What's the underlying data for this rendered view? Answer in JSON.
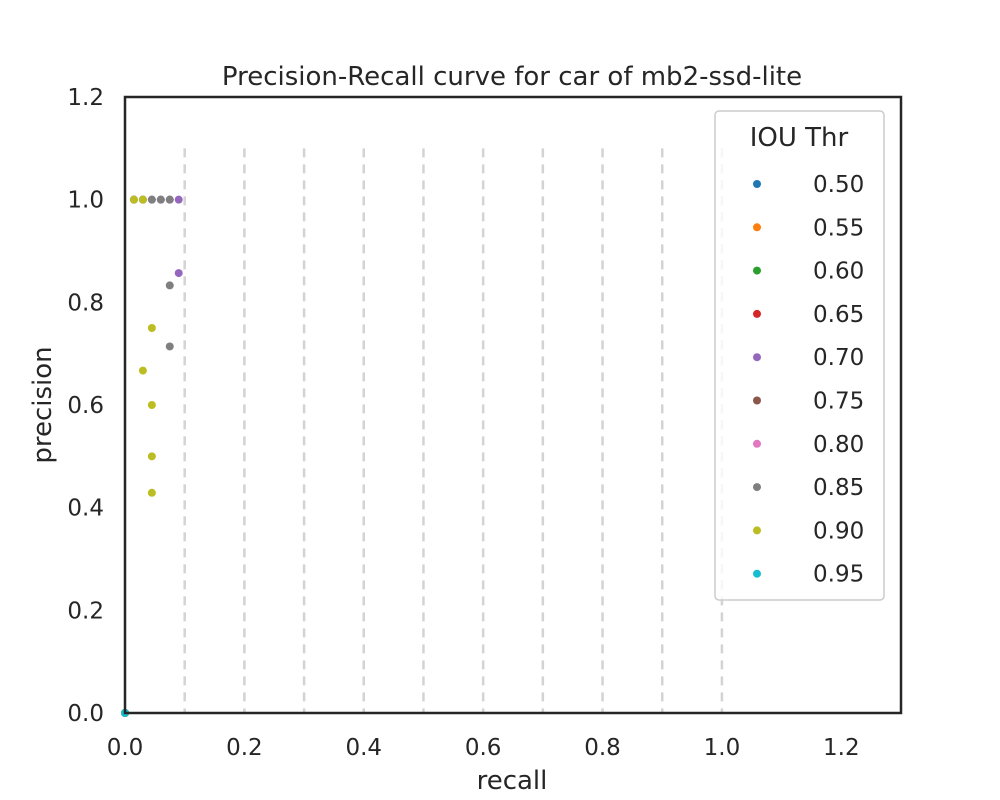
{
  "chart_data": {
    "type": "scatter",
    "title": "Precision-Recall curve for car of mb2-ssd-lite",
    "xlabel": "recall",
    "ylabel": "precision",
    "xlim": [
      0.0,
      1.3
    ],
    "ylim": [
      0.0,
      1.2
    ],
    "xticks": [
      "0.0",
      "0.2",
      "0.4",
      "0.6",
      "0.8",
      "1.0",
      "1.2"
    ],
    "yticks": [
      "0.0",
      "0.2",
      "0.4",
      "0.6",
      "0.8",
      "1.0",
      "1.2"
    ],
    "xtick_values": [
      0.0,
      0.2,
      0.4,
      0.6,
      0.8,
      1.0,
      1.2
    ],
    "ytick_values": [
      0.0,
      0.2,
      0.4,
      0.6,
      0.8,
      1.0,
      1.2
    ],
    "vertical_dashed_lines": [
      0.1,
      0.2,
      0.3,
      0.4,
      0.5,
      0.6,
      0.7,
      0.8,
      0.9,
      1.0
    ],
    "vertical_dashed_lines_range": [
      0.0,
      1.1
    ],
    "grid": false,
    "legend": {
      "title": "IOU Thr",
      "placement": "top-right"
    },
    "series": [
      {
        "name": "0.50",
        "color": "#1f77b4",
        "points": [
          [
            0.0,
            0.0
          ]
        ]
      },
      {
        "name": "0.55",
        "color": "#ff7f0e",
        "points": [
          [
            0.0,
            0.0
          ]
        ]
      },
      {
        "name": "0.60",
        "color": "#2ca02c",
        "points": [
          [
            0.0,
            0.0
          ]
        ]
      },
      {
        "name": "0.65",
        "color": "#d62728",
        "points": [
          [
            0.0,
            0.0
          ]
        ]
      },
      {
        "name": "0.70",
        "color": "#9467bd",
        "points": [
          [
            0.0,
            0.0
          ],
          [
            0.015,
            1.0
          ],
          [
            0.03,
            1.0
          ],
          [
            0.045,
            1.0
          ],
          [
            0.06,
            1.0
          ],
          [
            0.075,
            1.0
          ],
          [
            0.09,
            1.0
          ],
          [
            0.09,
            0.857
          ]
        ]
      },
      {
        "name": "0.75",
        "color": "#8c564b",
        "points": [
          [
            0.0,
            0.0
          ]
        ]
      },
      {
        "name": "0.80",
        "color": "#e377c2",
        "points": [
          [
            0.0,
            0.0
          ]
        ]
      },
      {
        "name": "0.85",
        "color": "#7f7f7f",
        "points": [
          [
            0.0,
            0.0
          ],
          [
            0.015,
            1.0
          ],
          [
            0.03,
            1.0
          ],
          [
            0.045,
            1.0
          ],
          [
            0.06,
            1.0
          ],
          [
            0.075,
            1.0
          ],
          [
            0.075,
            0.833
          ],
          [
            0.075,
            0.714
          ]
        ]
      },
      {
        "name": "0.90",
        "color": "#bcbd22",
        "points": [
          [
            0.0,
            0.0
          ],
          [
            0.015,
            1.0
          ],
          [
            0.03,
            1.0
          ],
          [
            0.045,
            0.75
          ],
          [
            0.03,
            0.667
          ],
          [
            0.045,
            0.6
          ],
          [
            0.045,
            0.5
          ],
          [
            0.045,
            0.429
          ]
        ]
      },
      {
        "name": "0.95",
        "color": "#17becf",
        "points": [
          [
            0.0,
            0.0
          ]
        ]
      }
    ]
  }
}
